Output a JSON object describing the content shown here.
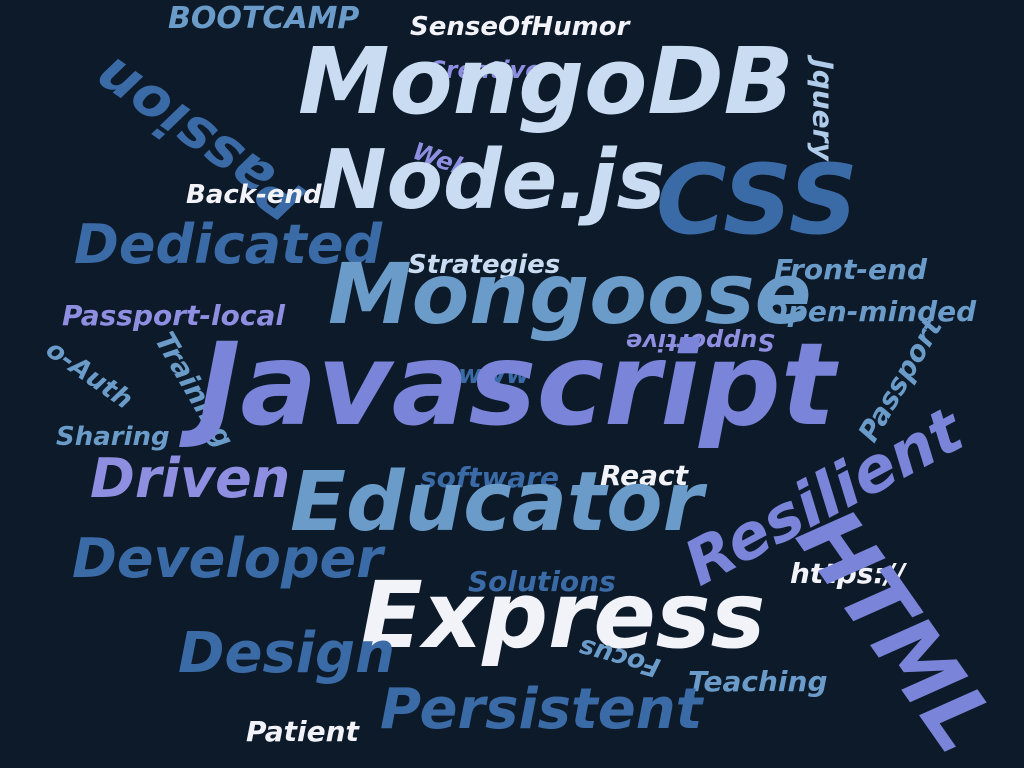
{
  "word_cloud": {
    "background_color": "#0c1a2a",
    "palette": [
      "#f2f3f8",
      "#c9dcf2",
      "#aecbea",
      "#6b9cc9",
      "#3b6ba6",
      "#8e8fe0",
      "#7a84d8"
    ],
    "words": {
      "javascript": "Javascript",
      "mongodb": "MongoDB",
      "nodejs": "Node.js",
      "css": "CSS",
      "mongoose": "Mongoose",
      "educator": "Educator",
      "express": "Express",
      "resilient": "Resilient",
      "html": "HTML",
      "persistent": "Persistent",
      "design": "Design",
      "developer": "Developer",
      "driven": "Driven",
      "dedicated": "Dedicated",
      "passion": "Passion",
      "bootcamp": "BOOTCAMP",
      "senseofhumor": "SenseOfHumor",
      "creative": "Creative",
      "jquery": "Jquery",
      "web": "Web",
      "backend": "Back-end",
      "strategies": "Strategies",
      "frontend": "Front-end",
      "openminded": "Open-minded",
      "passportlocal": "Passport-local",
      "supportive": "Supportive",
      "oauth": "o-Auth",
      "training": "Training",
      "www": "www",
      "passport": "Passport",
      "sharing": "Sharing",
      "software": "software",
      "react": "React",
      "https": "https://",
      "solutions": "Solutions",
      "focus": "Focus",
      "teaching": "Teaching",
      "patient": "Patient"
    }
  }
}
